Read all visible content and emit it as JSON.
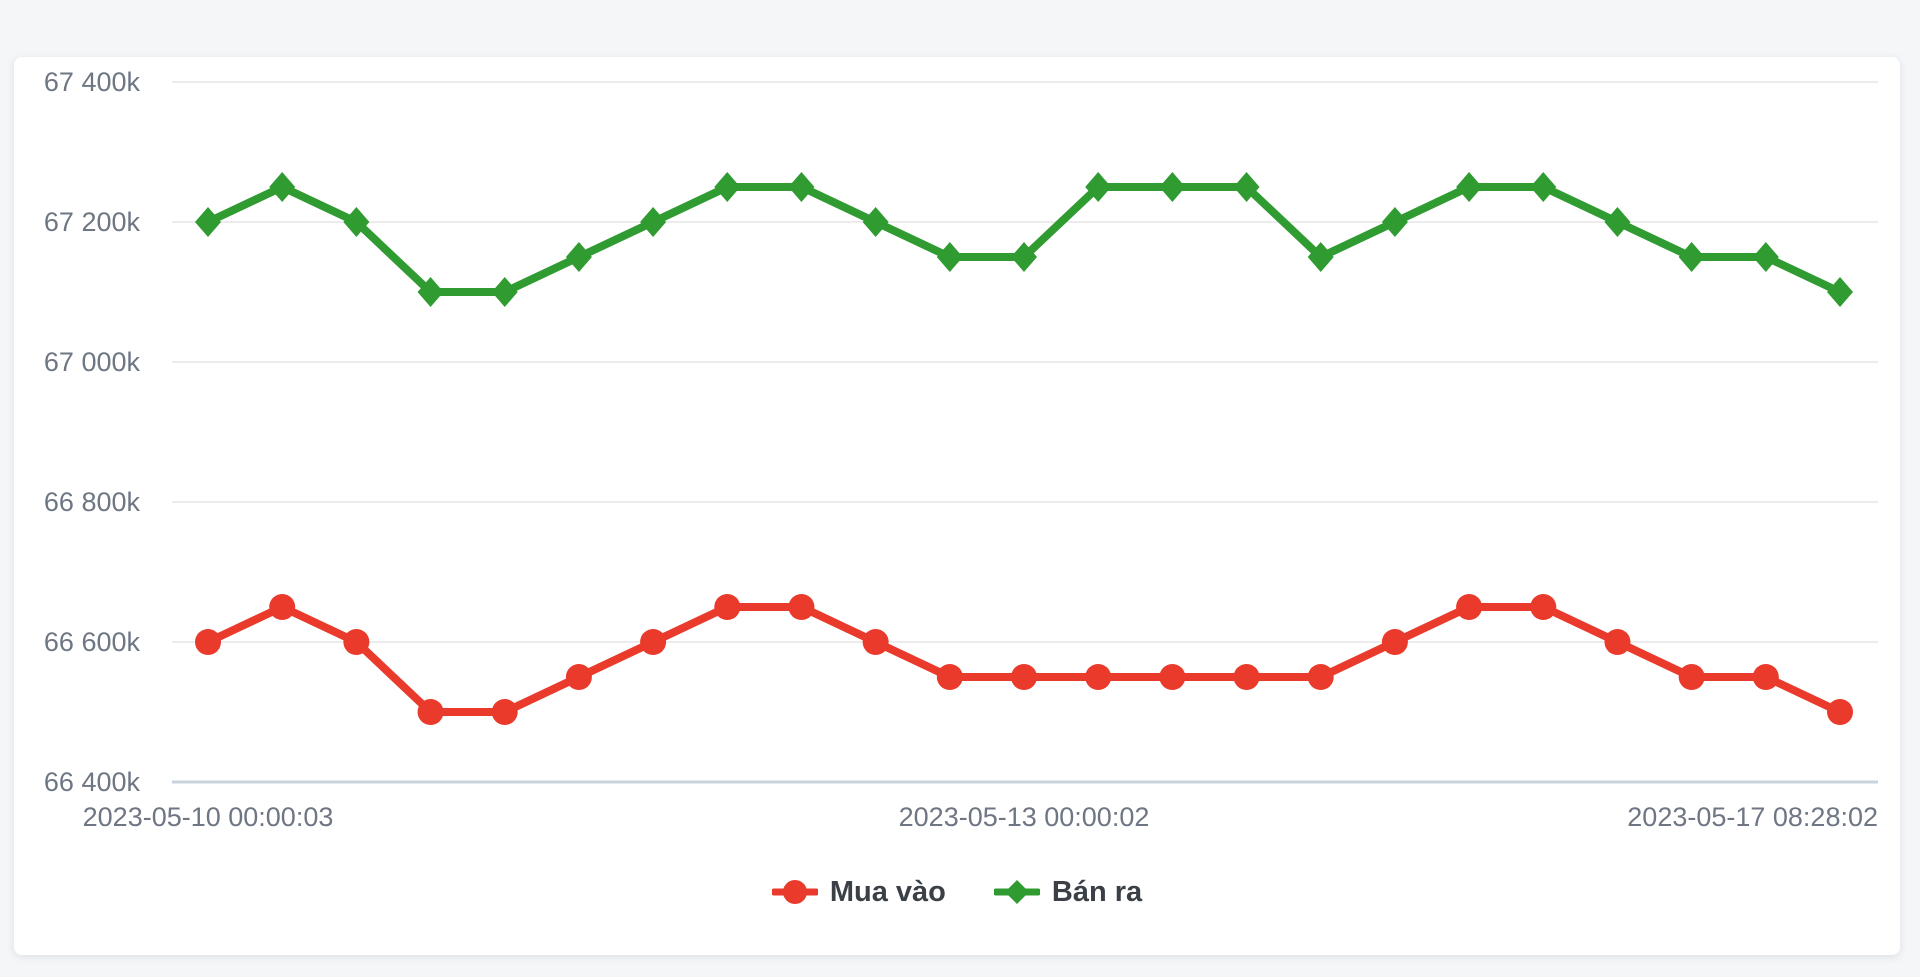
{
  "page": {
    "background": "#f4f6f8"
  },
  "chart_data": {
    "type": "line",
    "title": "",
    "y_tick_labels": [
      "67 400k",
      "67 200k",
      "67 000k",
      "66 800k",
      "66 600k",
      "66 400k"
    ],
    "y_tick_values": [
      67400,
      67200,
      67000,
      66800,
      66600,
      66400
    ],
    "ylim": [
      66400,
      67400
    ],
    "x_tick_labels": [
      "2023-05-10 00:00:03",
      "2023-05-13 00:00:02",
      "2023-05-17 08:28:02"
    ],
    "x_tick_point_indices": [
      0,
      11,
      22
    ],
    "grid": "horizontal",
    "legend_position": "bottom-center",
    "series": [
      {
        "id": "mua-vao",
        "name": "Mua vào",
        "color": "#e93a2c",
        "marker": "circle",
        "values": [
          66600,
          66650,
          66600,
          66500,
          66500,
          66550,
          66600,
          66650,
          66650,
          66600,
          66550,
          66550,
          66550,
          66550,
          66550,
          66550,
          66600,
          66650,
          66650,
          66600,
          66550,
          66550,
          66500
        ]
      },
      {
        "id": "ban-ra",
        "name": "Bán ra",
        "color": "#2f9b31",
        "marker": "diamond",
        "values": [
          67200,
          67250,
          67200,
          67100,
          67100,
          67150,
          67200,
          67250,
          67250,
          67200,
          67150,
          67150,
          67250,
          67250,
          67250,
          67150,
          67200,
          67250,
          67250,
          67200,
          67150,
          67150,
          67100
        ]
      }
    ],
    "colors": {
      "grid_line": "#ececec",
      "axis_line": "#c9d3dd",
      "tick_label": "#6e7683",
      "legend_text": "#3a4046"
    }
  }
}
